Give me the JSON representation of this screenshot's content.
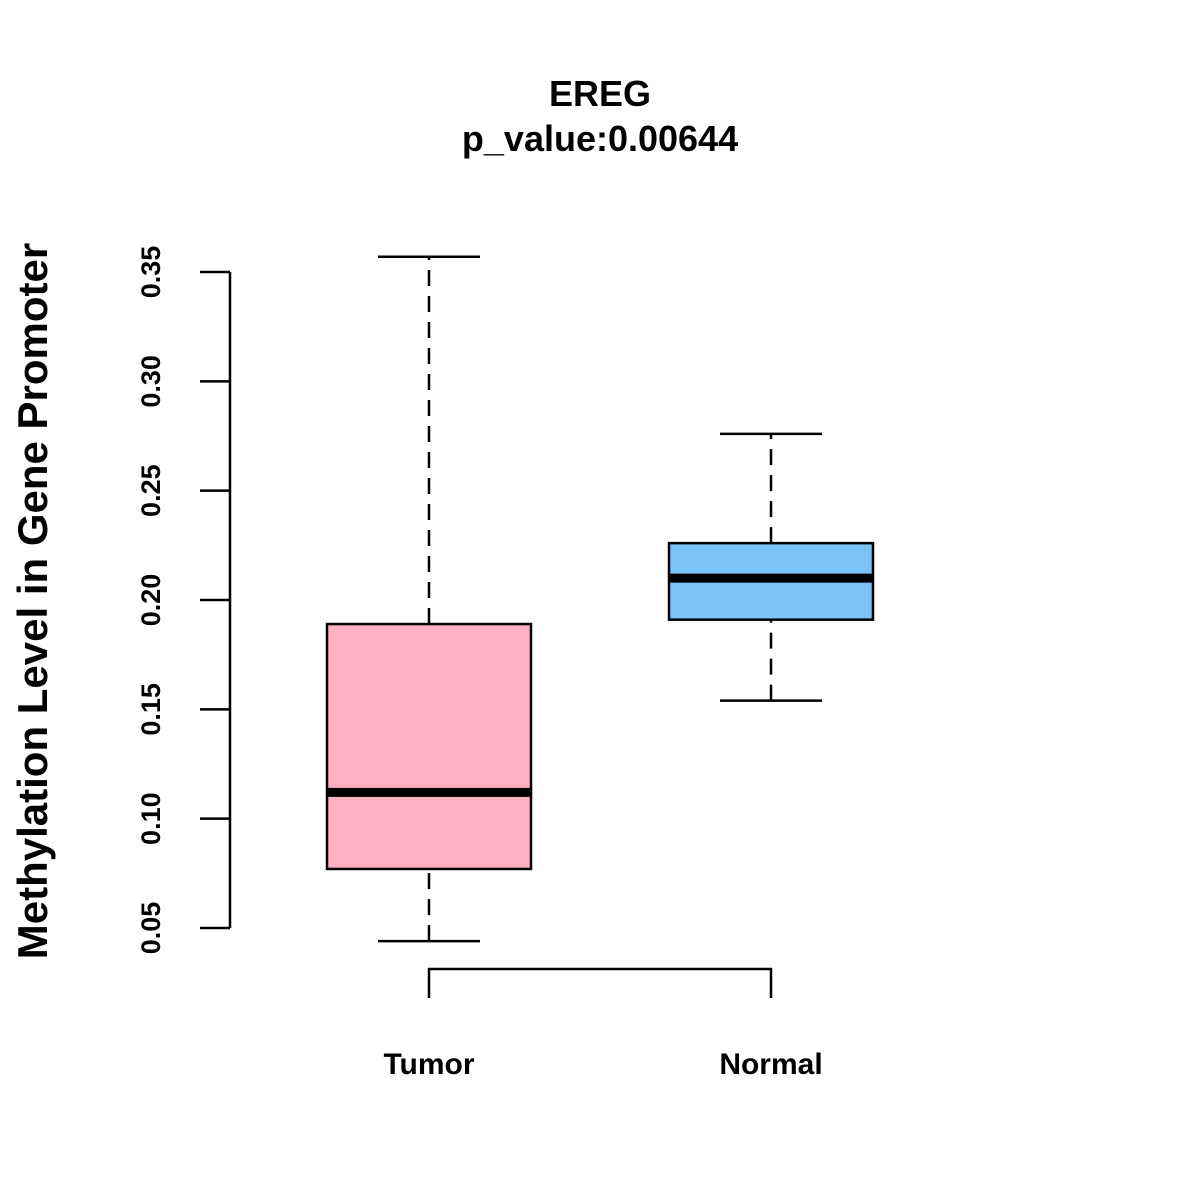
{
  "chart_data": {
    "type": "boxplot",
    "title": "EREG",
    "subtitle": "p_value:0.00644",
    "xlabel": "",
    "ylabel": "Methylation Level in Gene Promoter",
    "ylim": [
      0.05,
      0.35
    ],
    "yticks": [
      0.05,
      0.1,
      0.15,
      0.2,
      0.25,
      0.3,
      0.35
    ],
    "ytick_labels": [
      "0.05",
      "0.10",
      "0.15",
      "0.20",
      "0.25",
      "0.30",
      "0.35"
    ],
    "grid": false,
    "categories": [
      "Tumor",
      "Normal"
    ],
    "series": [
      {
        "name": "Tumor",
        "min": 0.044,
        "q1": 0.077,
        "median": 0.112,
        "q3": 0.189,
        "max": 0.357,
        "color": "#FFB0C4"
      },
      {
        "name": "Normal",
        "min": 0.154,
        "q1": 0.191,
        "median": 0.21,
        "q3": 0.226,
        "max": 0.276,
        "color": "#7AC3F8"
      }
    ],
    "comparison_bracket": {
      "between": [
        "Tumor",
        "Normal"
      ]
    }
  }
}
